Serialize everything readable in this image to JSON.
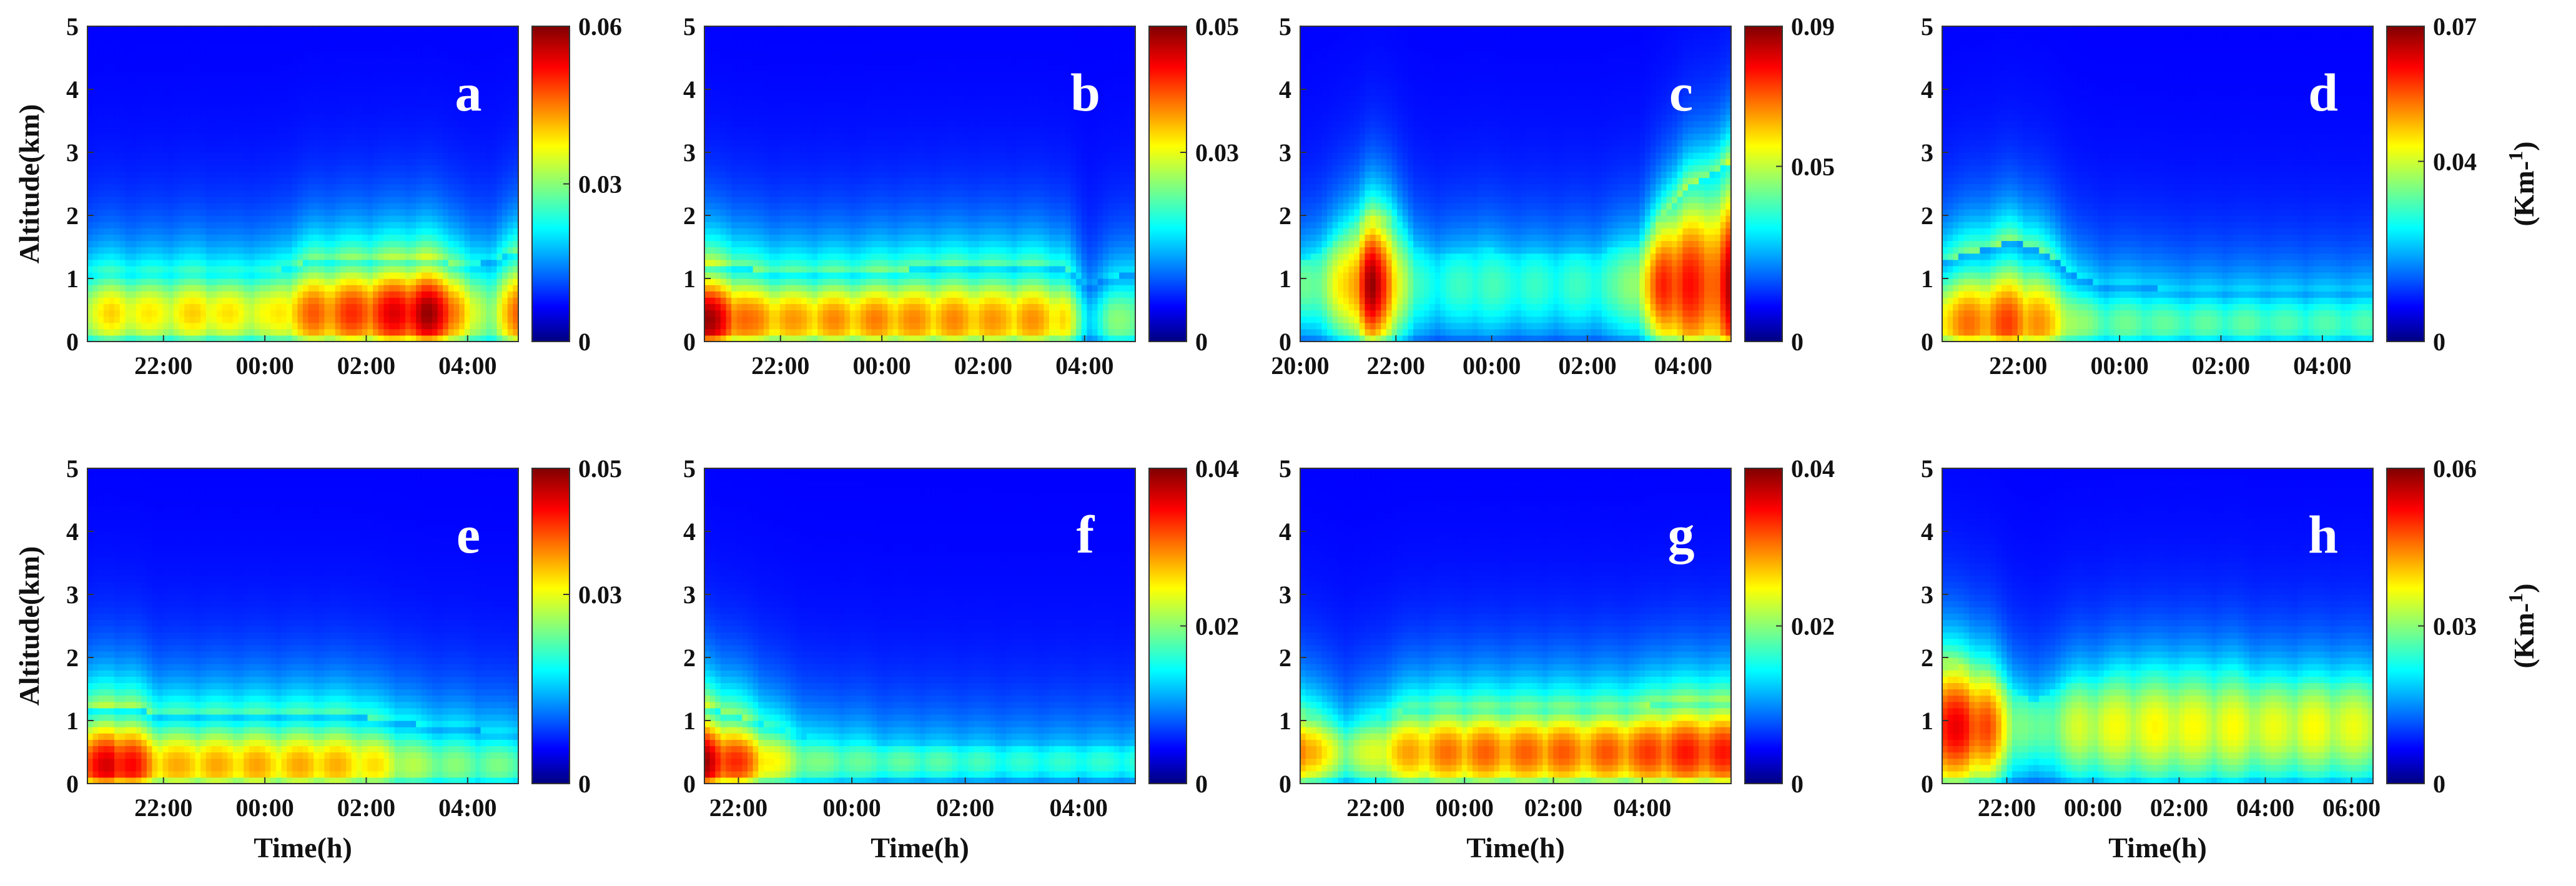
{
  "chart_data": [
    {
      "type": "heatmap",
      "panel": "a",
      "ylabel": "Altitude(km)",
      "xlabel": "",
      "ylim": [
        0,
        5
      ],
      "yticks": [
        "0",
        "1",
        "2",
        "3",
        "4",
        "5"
      ],
      "xticks": [
        "22:00",
        "00:00",
        "02:00",
        "04:00"
      ],
      "colorbar": {
        "min": 0,
        "max": 0.06,
        "ticks": [
          "0",
          "0.03",
          "0.06"
        ],
        "unit": ""
      },
      "time_range_h": [
        20.5,
        29.0
      ],
      "layer_top_km": [
        1.1,
        1.1,
        1.05,
        1.1,
        1.1,
        1.1,
        1.05,
        1.1,
        1.1,
        1.2,
        1.3,
        1.3,
        1.3,
        1.3,
        1.3,
        1.3,
        1.25,
        1.2,
        1.3,
        1.4
      ],
      "peak_value": [
        0.033,
        0.035,
        0.034,
        0.033,
        0.034,
        0.036,
        0.034,
        0.033,
        0.032,
        0.038,
        0.043,
        0.044,
        0.046,
        0.048,
        0.052,
        0.055,
        0.05,
        0.03,
        0.028,
        0.042
      ],
      "peak_alt_km": 0.45
    },
    {
      "type": "heatmap",
      "panel": "b",
      "ylabel": "",
      "xlabel": "",
      "ylim": [
        0,
        5
      ],
      "yticks": [
        "0",
        "1",
        "2",
        "3",
        "4",
        "5"
      ],
      "xticks": [
        "22:00",
        "00:00",
        "02:00",
        "04:00"
      ],
      "colorbar": {
        "min": 0,
        "max": 0.05,
        "ticks": [
          "0",
          "0.03",
          "0.05"
        ],
        "unit": ""
      },
      "time_range_h": [
        20.5,
        29.0
      ],
      "layer_top_km": [
        1.2,
        1.2,
        1.15,
        1.1,
        1.1,
        1.1,
        1.1,
        1.1,
        1.15,
        1.15,
        1.2,
        1.2,
        1.2,
        1.2,
        1.2,
        1.2,
        1.15,
        0.9,
        1.0,
        1.1
      ],
      "peak_value": [
        0.046,
        0.04,
        0.034,
        0.033,
        0.032,
        0.033,
        0.033,
        0.033,
        0.034,
        0.033,
        0.033,
        0.033,
        0.033,
        0.032,
        0.033,
        0.032,
        0.03,
        0.012,
        0.02,
        0.022
      ],
      "peak_alt_km": 0.35
    },
    {
      "type": "heatmap",
      "panel": "c",
      "ylabel": "",
      "xlabel": "",
      "ylim": [
        0,
        5
      ],
      "yticks": [
        "0",
        "1",
        "2",
        "3",
        "4",
        "5"
      ],
      "xticks": [
        "20:00",
        "22:00",
        "00:00",
        "02:00",
        "04:00"
      ],
      "colorbar": {
        "min": 0,
        "max": 0.09,
        "ticks": [
          "0",
          "0.05",
          "0.09"
        ],
        "unit": ""
      },
      "time_range_h": [
        20.0,
        29.0
      ],
      "layer_top_km": [
        1.3,
        1.5,
        1.7,
        1.9,
        1.9,
        1.5,
        1.4,
        1.4,
        1.5,
        1.4,
        1.4,
        1.4,
        1.4,
        1.4,
        1.5,
        1.5,
        1.9,
        2.4,
        2.6,
        2.8
      ],
      "peak_value": [
        0.035,
        0.04,
        0.055,
        0.085,
        0.06,
        0.03,
        0.028,
        0.03,
        0.032,
        0.03,
        0.03,
        0.029,
        0.03,
        0.03,
        0.033,
        0.045,
        0.07,
        0.075,
        0.065,
        0.08
      ],
      "peak_alt_km": 0.9
    },
    {
      "type": "heatmap",
      "panel": "d",
      "ylabel": "",
      "xlabel": "",
      "ylim": [
        0,
        5
      ],
      "yticks": [
        "0",
        "1",
        "2",
        "3",
        "4",
        "5"
      ],
      "xticks": [
        "22:00",
        "00:00",
        "02:00",
        "04:00"
      ],
      "colorbar": {
        "min": 0,
        "max": 0.07,
        "ticks": [
          "0",
          "0.04",
          "0.07"
        ],
        "unit": "(Km-1)"
      },
      "time_range_h": [
        20.5,
        29.0
      ],
      "layer_top_km": [
        1.3,
        1.4,
        1.5,
        1.6,
        1.5,
        1.3,
        1.0,
        0.9,
        0.9,
        0.9,
        0.8,
        0.8,
        0.8,
        0.8,
        0.8,
        0.8,
        0.8,
        0.8,
        0.8,
        0.8
      ],
      "peak_value": [
        0.045,
        0.048,
        0.05,
        0.052,
        0.048,
        0.04,
        0.03,
        0.027,
        0.027,
        0.027,
        0.026,
        0.026,
        0.026,
        0.026,
        0.026,
        0.025,
        0.025,
        0.025,
        0.025,
        0.025
      ],
      "peak_alt_km": 0.3
    },
    {
      "type": "heatmap",
      "panel": "e",
      "ylabel": "Altitude(km)",
      "xlabel": "Time(h)",
      "ylim": [
        0,
        5
      ],
      "yticks": [
        "0",
        "1",
        "2",
        "3",
        "4",
        "5"
      ],
      "xticks": [
        "22:00",
        "00:00",
        "02:00",
        "04:00"
      ],
      "colorbar": {
        "min": 0,
        "max": 0.05,
        "ticks": [
          "0",
          "0.03",
          "0.05"
        ],
        "unit": ""
      },
      "time_range_h": [
        20.5,
        29.0
      ],
      "layer_top_km": [
        1.2,
        1.2,
        1.2,
        1.1,
        1.1,
        1.1,
        1.1,
        1.1,
        1.1,
        1.1,
        1.1,
        1.1,
        1.1,
        1.0,
        1.0,
        0.9,
        0.9,
        0.9,
        0.8,
        0.8
      ],
      "peak_value": [
        0.038,
        0.045,
        0.04,
        0.032,
        0.031,
        0.032,
        0.031,
        0.032,
        0.031,
        0.031,
        0.032,
        0.031,
        0.03,
        0.028,
        0.024,
        0.022,
        0.021,
        0.02,
        0.02,
        0.02
      ],
      "peak_alt_km": 0.3
    },
    {
      "type": "heatmap",
      "panel": "f",
      "ylabel": "",
      "xlabel": "Time(h)",
      "ylim": [
        0,
        5
      ],
      "yticks": [
        "0",
        "1",
        "2",
        "3",
        "4",
        "5"
      ],
      "xticks": [
        "22:00",
        "00:00",
        "02:00",
        "04:00"
      ],
      "colorbar": {
        "min": 0,
        "max": 0.04,
        "ticks": [
          "0",
          "0.02",
          "0.04"
        ],
        "unit": ""
      },
      "time_range_h": [
        21.4,
        29.0
      ],
      "layer_top_km": [
        1.2,
        1.1,
        1.0,
        0.9,
        0.8,
        0.7,
        0.7,
        0.7,
        0.6,
        0.6,
        0.6,
        0.6,
        0.6,
        0.6,
        0.6,
        0.6,
        0.6,
        0.6,
        0.6,
        0.6
      ],
      "peak_value": [
        0.036,
        0.032,
        0.028,
        0.022,
        0.018,
        0.016,
        0.016,
        0.015,
        0.015,
        0.015,
        0.015,
        0.014,
        0.014,
        0.013,
        0.013,
        0.013,
        0.013,
        0.013,
        0.013,
        0.013
      ],
      "peak_alt_km": 0.35
    },
    {
      "type": "heatmap",
      "panel": "g",
      "ylabel": "",
      "xlabel": "Time(h)",
      "ylim": [
        0,
        5
      ],
      "yticks": [
        "0",
        "1",
        "2",
        "3",
        "4",
        "5"
      ],
      "xticks": [
        "22:00",
        "00:00",
        "02:00",
        "04:00"
      ],
      "colorbar": {
        "min": 0,
        "max": 0.04,
        "ticks": [
          "0",
          "0.02",
          "0.04"
        ],
        "unit": ""
      },
      "time_range_h": [
        20.3,
        30.0
      ],
      "layer_top_km": [
        1.1,
        1.0,
        0.9,
        1.0,
        1.1,
        1.2,
        1.2,
        1.2,
        1.2,
        1.2,
        1.2,
        1.2,
        1.2,
        1.2,
        1.2,
        1.2,
        1.3,
        1.3,
        1.3,
        1.3
      ],
      "peak_value": [
        0.03,
        0.022,
        0.018,
        0.02,
        0.024,
        0.026,
        0.027,
        0.028,
        0.028,
        0.028,
        0.028,
        0.029,
        0.028,
        0.028,
        0.029,
        0.029,
        0.031,
        0.031,
        0.032,
        0.031
      ],
      "peak_alt_km": 0.5
    },
    {
      "type": "heatmap",
      "panel": "h",
      "ylabel": "",
      "xlabel": "Time(h)",
      "ylim": [
        0,
        5
      ],
      "yticks": [
        "0",
        "1",
        "2",
        "3",
        "4",
        "5"
      ],
      "xticks": [
        "22:00",
        "00:00",
        "02:00",
        "04:00",
        "06:00"
      ],
      "colorbar": {
        "min": 0,
        "max": 0.06,
        "ticks": [
          "0",
          "0.03",
          "0.06"
        ],
        "unit": "(Km-1)"
      },
      "time_range_h": [
        20.5,
        30.5
      ],
      "layer_top_km": [
        1.9,
        1.8,
        1.7,
        1.5,
        1.3,
        1.5,
        1.6,
        1.6,
        1.7,
        1.7,
        1.7,
        1.7,
        1.7,
        1.7,
        1.6,
        1.6,
        1.6,
        1.6,
        1.6,
        1.6
      ],
      "peak_value": [
        0.048,
        0.05,
        0.044,
        0.028,
        0.022,
        0.026,
        0.03,
        0.031,
        0.032,
        0.032,
        0.033,
        0.032,
        0.032,
        0.032,
        0.031,
        0.031,
        0.032,
        0.032,
        0.031,
        0.031
      ],
      "peak_alt_km": 0.9
    }
  ]
}
